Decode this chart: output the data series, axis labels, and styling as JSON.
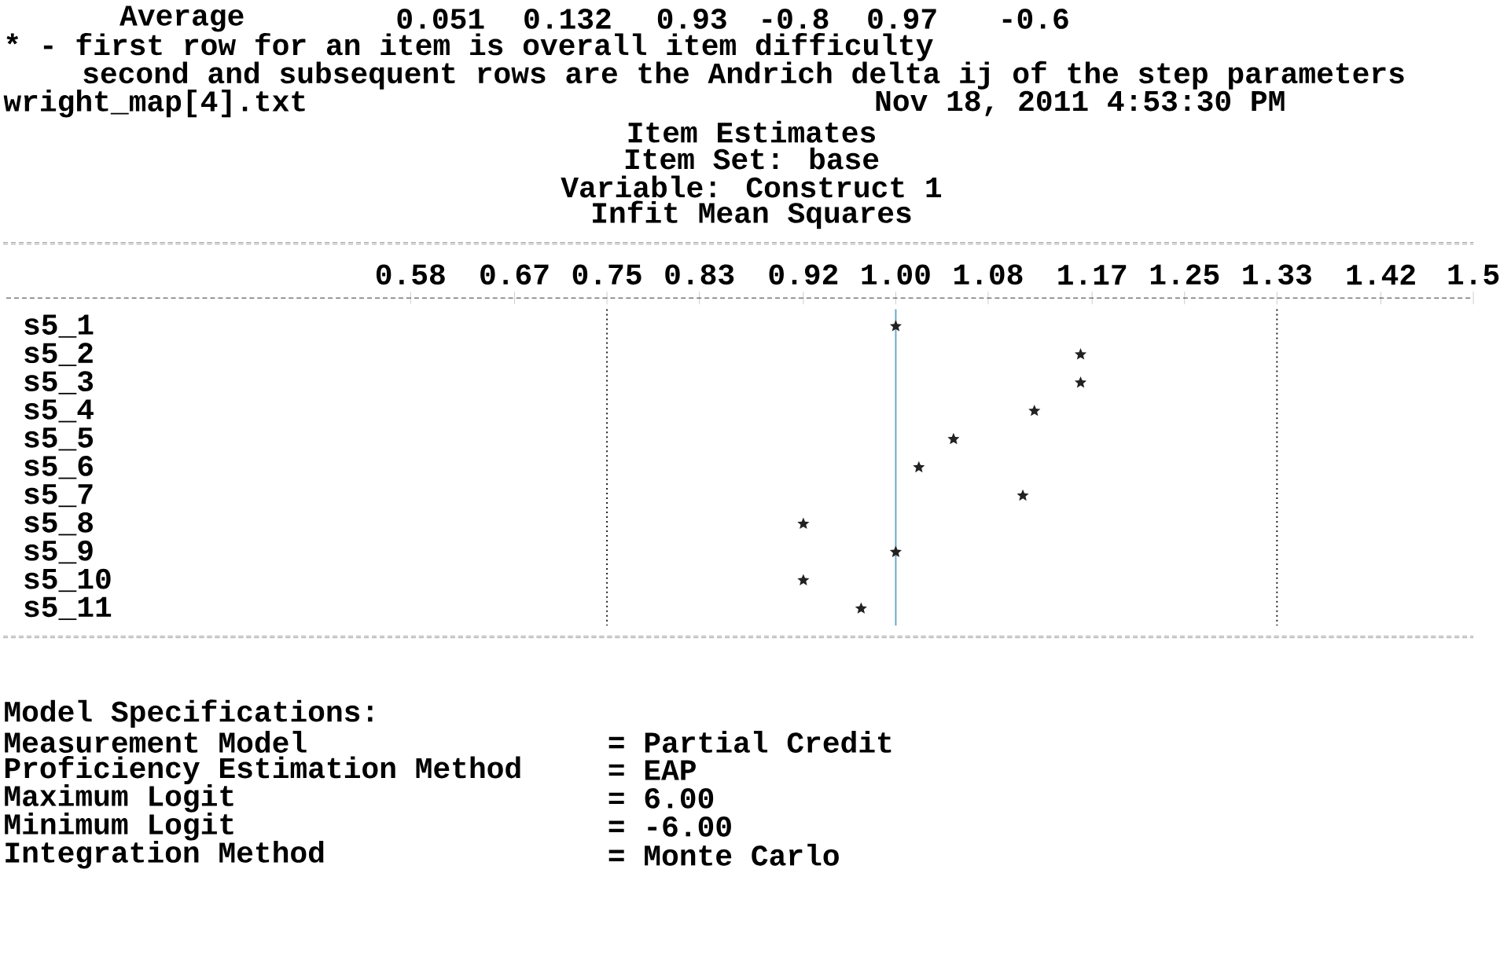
{
  "chart_data": {
    "type": "scatter",
    "orientation": "horizontal",
    "marker": "star",
    "color": "#222222",
    "title": "Item Estimates",
    "subtitle": "Item Set: base",
    "categories": [
      "s5_1",
      "s5_2",
      "s5_3",
      "s5_4",
      "s5_5",
      "s5_6",
      "s5_7",
      "s5_8",
      "s5_9",
      "s5_10",
      "s5_11"
    ],
    "values": [
      1.0,
      1.16,
      1.16,
      1.12,
      1.05,
      1.02,
      1.11,
      0.92,
      1.0,
      0.92,
      0.97
    ],
    "xlim": [
      0.23,
      1.5
    ],
    "xticks": [
      0.58,
      0.67,
      0.75,
      0.83,
      0.92,
      {
        "value": 1,
        "label": "1.00"
      },
      1.08,
      1.17,
      1.25,
      1.33,
      1.42,
      1.5
    ],
    "ref_lines": [
      {
        "axis": "x",
        "value": 0.75,
        "color": "#222222",
        "line_style": "dotted"
      },
      {
        "axis": "x",
        "value": 1.0,
        "color": "#6fa8c8",
        "line_style": "solid"
      },
      {
        "axis": "x",
        "value": 1.33,
        "color": "#222222",
        "line_style": "dotted"
      }
    ],
    "annotations": [
      "Average",
      "0.051",
      "0.132",
      "0.93",
      "-0.8",
      "0.97",
      "-0.6",
      "* - first row for an item is overall item difficulty",
      "second and subsequent rows are the Andrich delta ij of the step parameters",
      "wright_map[4].txt",
      "Nov 18, 2011 4:53:30 PM",
      "Variable: Construct 1",
      "Infit Mean Squares",
      "Model Specifications:",
      "Measurement Model",
      "= Partial Credit",
      "Proficiency Estimation Method",
      "= EAP",
      "Maximum Logit",
      "= 6.00",
      "Minimum Logit",
      "= -6.00",
      "Integration Method",
      "= Monte Carlo"
    ]
  }
}
